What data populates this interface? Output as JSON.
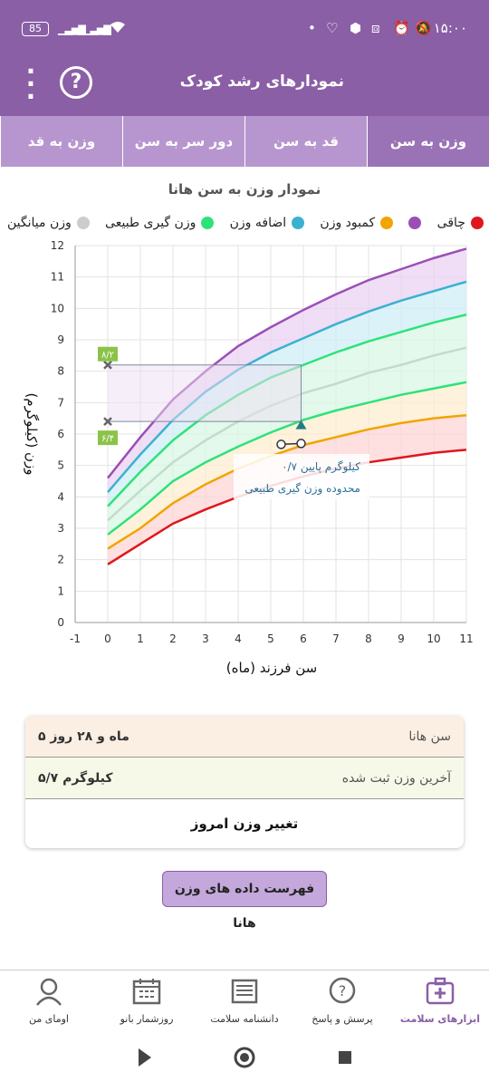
{
  "status": {
    "time": "۱۵:۰۰",
    "battery": "85"
  },
  "appbar": {
    "title": "نمودارهای رشد کودک",
    "help_icon": "question-icon",
    "menu_icon": "more-vert-icon"
  },
  "tabs": [
    {
      "label": "وزن به سن",
      "active": true
    },
    {
      "label": "قد به سن",
      "active": false
    },
    {
      "label": "دور سر به سن",
      "active": false
    },
    {
      "label": "وزن به قد",
      "active": false
    }
  ],
  "chart_title": "نمودار وزن به سن هانا",
  "legend": [
    {
      "label": "چاقی",
      "color": "#e0161c"
    },
    {
      "label": "کمبود وزن",
      "color": "#9b4fb5"
    },
    {
      "label": "اضافه وزن",
      "color": "#f0a500"
    },
    {
      "label": "وزن گیری طبیعی",
      "color": "#3bb1d0"
    },
    {
      "label": "وزن میانگین",
      "color": "#2ee27a"
    },
    {
      "label": "",
      "color": "#cccccc"
    }
  ],
  "legend_text": [
    "چاقی",
    "کمبود وزن",
    "اضافه وزن",
    "وزن گیری طبیعی",
    "وزن میانگین"
  ],
  "chart_data": {
    "type": "line",
    "xlabel": "سن فرزند (ماه)",
    "ylabel": "وزن (کیلوگرم)",
    "xlim": [
      -1,
      11
    ],
    "ylim": [
      0,
      12
    ],
    "x_ticks": [
      "-1",
      "0",
      "1",
      "2",
      "3",
      "4",
      "5",
      "6",
      "7",
      "8",
      "9",
      "10",
      "11"
    ],
    "y_ticks": [
      "0",
      "1",
      "2",
      "3",
      "4",
      "5",
      "6",
      "7",
      "8",
      "9",
      "10",
      "11",
      "12"
    ],
    "x": [
      0,
      1,
      2,
      3,
      4,
      5,
      6,
      7,
      8,
      9,
      10,
      11
    ],
    "series": [
      {
        "color": "#9b4fb5",
        "values": [
          4.6,
          5.9,
          7.1,
          8.0,
          8.8,
          9.4,
          9.95,
          10.45,
          10.9,
          11.25,
          11.6,
          11.9
        ]
      },
      {
        "color": "#3bb1d0",
        "values": [
          4.15,
          5.35,
          6.45,
          7.35,
          8.05,
          8.6,
          9.05,
          9.5,
          9.9,
          10.25,
          10.55,
          10.85
        ]
      },
      {
        "color": "#2ee27a",
        "values": [
          3.7,
          4.8,
          5.8,
          6.6,
          7.25,
          7.8,
          8.2,
          8.6,
          8.95,
          9.25,
          9.55,
          9.8
        ]
      },
      {
        "color": "#c3dcc8",
        "values": [
          3.25,
          4.2,
          5.1,
          5.8,
          6.4,
          6.9,
          7.3,
          7.6,
          7.95,
          8.2,
          8.5,
          8.75
        ]
      },
      {
        "color": "#2ee27a",
        "values": [
          2.8,
          3.6,
          4.5,
          5.1,
          5.6,
          6.05,
          6.45,
          6.75,
          7.0,
          7.25,
          7.45,
          7.65
        ]
      },
      {
        "color": "#f0a500",
        "values": [
          2.35,
          3.0,
          3.8,
          4.4,
          4.9,
          5.3,
          5.65,
          5.9,
          6.15,
          6.35,
          6.5,
          6.6
        ]
      },
      {
        "color": "#e0161c",
        "values": [
          1.85,
          2.5,
          3.15,
          3.6,
          4.0,
          4.35,
          4.65,
          4.9,
          5.1,
          5.25,
          5.4,
          5.5
        ]
      }
    ],
    "markers": {
      "upper_label": "۸/۲",
      "upper_value": 8.2,
      "lower_label": "۶/۴",
      "lower_value": 6.4,
      "triangle": {
        "x": 5.93,
        "y": 6.3
      },
      "child_point": {
        "x": 5.93,
        "y": 5.7
      }
    },
    "annotation": {
      "line1": "۰/۷ کیلوگرم پایین",
      "line2": "محدوده وزن گیری طبیعی"
    }
  },
  "info": {
    "age_label": "سن هانا",
    "age_value": "۵ ماه و ۲۸ روز",
    "weight_label": "آخرین وزن ثبت شده",
    "weight_value": "۵/۷ کیلوگرم",
    "change_button": "تغییر وزن امروز"
  },
  "list_button": "فهرست داده های وزن هانا",
  "bottom_nav": [
    {
      "label": "ابزارهای سلامت",
      "icon": "medical-bag-icon",
      "active": true
    },
    {
      "label": "پرسش و پاسخ",
      "icon": "question-bubble-icon",
      "active": false
    },
    {
      "label": "دانشنامه سلامت",
      "icon": "newspaper-icon",
      "active": false
    },
    {
      "label": "روزشمار بانو",
      "icon": "calendar-icon",
      "active": false
    },
    {
      "label": "اومای من",
      "icon": "user-profile-icon",
      "active": false
    }
  ]
}
